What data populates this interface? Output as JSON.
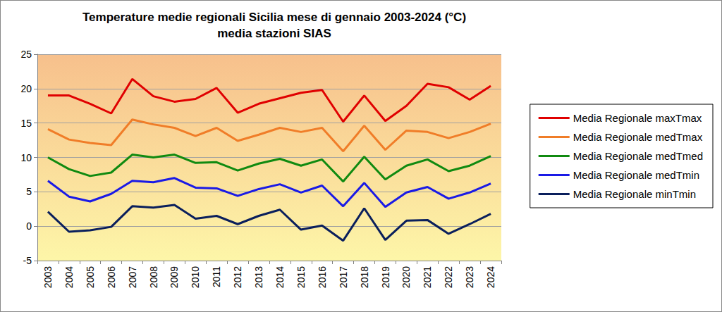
{
  "chart_data": {
    "type": "line",
    "title": "Temperature medie regionali Sicilia mese di gennaio 2003-2024 (°C)",
    "subtitle": "media stazioni SIAS",
    "categories": [
      "2003",
      "2004",
      "2005",
      "2006",
      "2007",
      "2008",
      "2009",
      "2010",
      "2011",
      "2012",
      "2013",
      "2014",
      "2015",
      "2016",
      "2017",
      "2018",
      "2019",
      "2020",
      "2021",
      "2022",
      "2023",
      "2024"
    ],
    "series": [
      {
        "name": "Media Regionale maxTmax",
        "color": "#e00000",
        "values": [
          19.0,
          19.0,
          17.8,
          16.4,
          21.4,
          18.9,
          18.1,
          18.5,
          20.1,
          16.5,
          17.8,
          18.6,
          19.4,
          19.8,
          15.2,
          19.0,
          15.3,
          17.5,
          20.7,
          20.2,
          18.4,
          20.4
        ]
      },
      {
        "name": "Media Regionale medTmax",
        "color": "#f07d28",
        "values": [
          14.1,
          12.6,
          12.1,
          11.8,
          15.5,
          14.8,
          14.3,
          13.1,
          14.3,
          12.4,
          13.3,
          14.3,
          13.7,
          14.3,
          10.9,
          14.6,
          11.1,
          13.9,
          13.7,
          12.8,
          13.7,
          14.9
        ]
      },
      {
        "name": "Media Regionale medTmed",
        "color": "#108a10",
        "values": [
          10.0,
          8.3,
          7.3,
          7.8,
          10.4,
          10.0,
          10.4,
          9.2,
          9.3,
          8.1,
          9.1,
          9.8,
          8.8,
          9.7,
          6.5,
          10.1,
          6.8,
          8.8,
          9.7,
          8.0,
          8.8,
          10.2
        ]
      },
      {
        "name": "Media Regionale medTmin",
        "color": "#1a1ae6",
        "values": [
          6.6,
          4.3,
          3.6,
          4.7,
          6.6,
          6.4,
          7.0,
          5.6,
          5.5,
          4.4,
          5.4,
          6.1,
          4.9,
          5.9,
          2.9,
          6.3,
          2.8,
          4.9,
          5.7,
          4.0,
          4.9,
          6.2
        ]
      },
      {
        "name": "Media Regionale minTmin",
        "color": "#0a1f5c",
        "values": [
          2.1,
          -0.8,
          -0.6,
          -0.1,
          2.9,
          2.7,
          3.1,
          1.1,
          1.5,
          0.3,
          1.5,
          2.4,
          -0.5,
          0.1,
          -2.1,
          2.6,
          -2.0,
          0.8,
          0.9,
          -1.1,
          0.3,
          1.8
        ]
      }
    ],
    "ylim": [
      -5,
      25
    ],
    "yticks": [
      -5,
      0,
      5,
      10,
      15,
      20,
      25
    ],
    "grid": true,
    "legend": "right"
  }
}
